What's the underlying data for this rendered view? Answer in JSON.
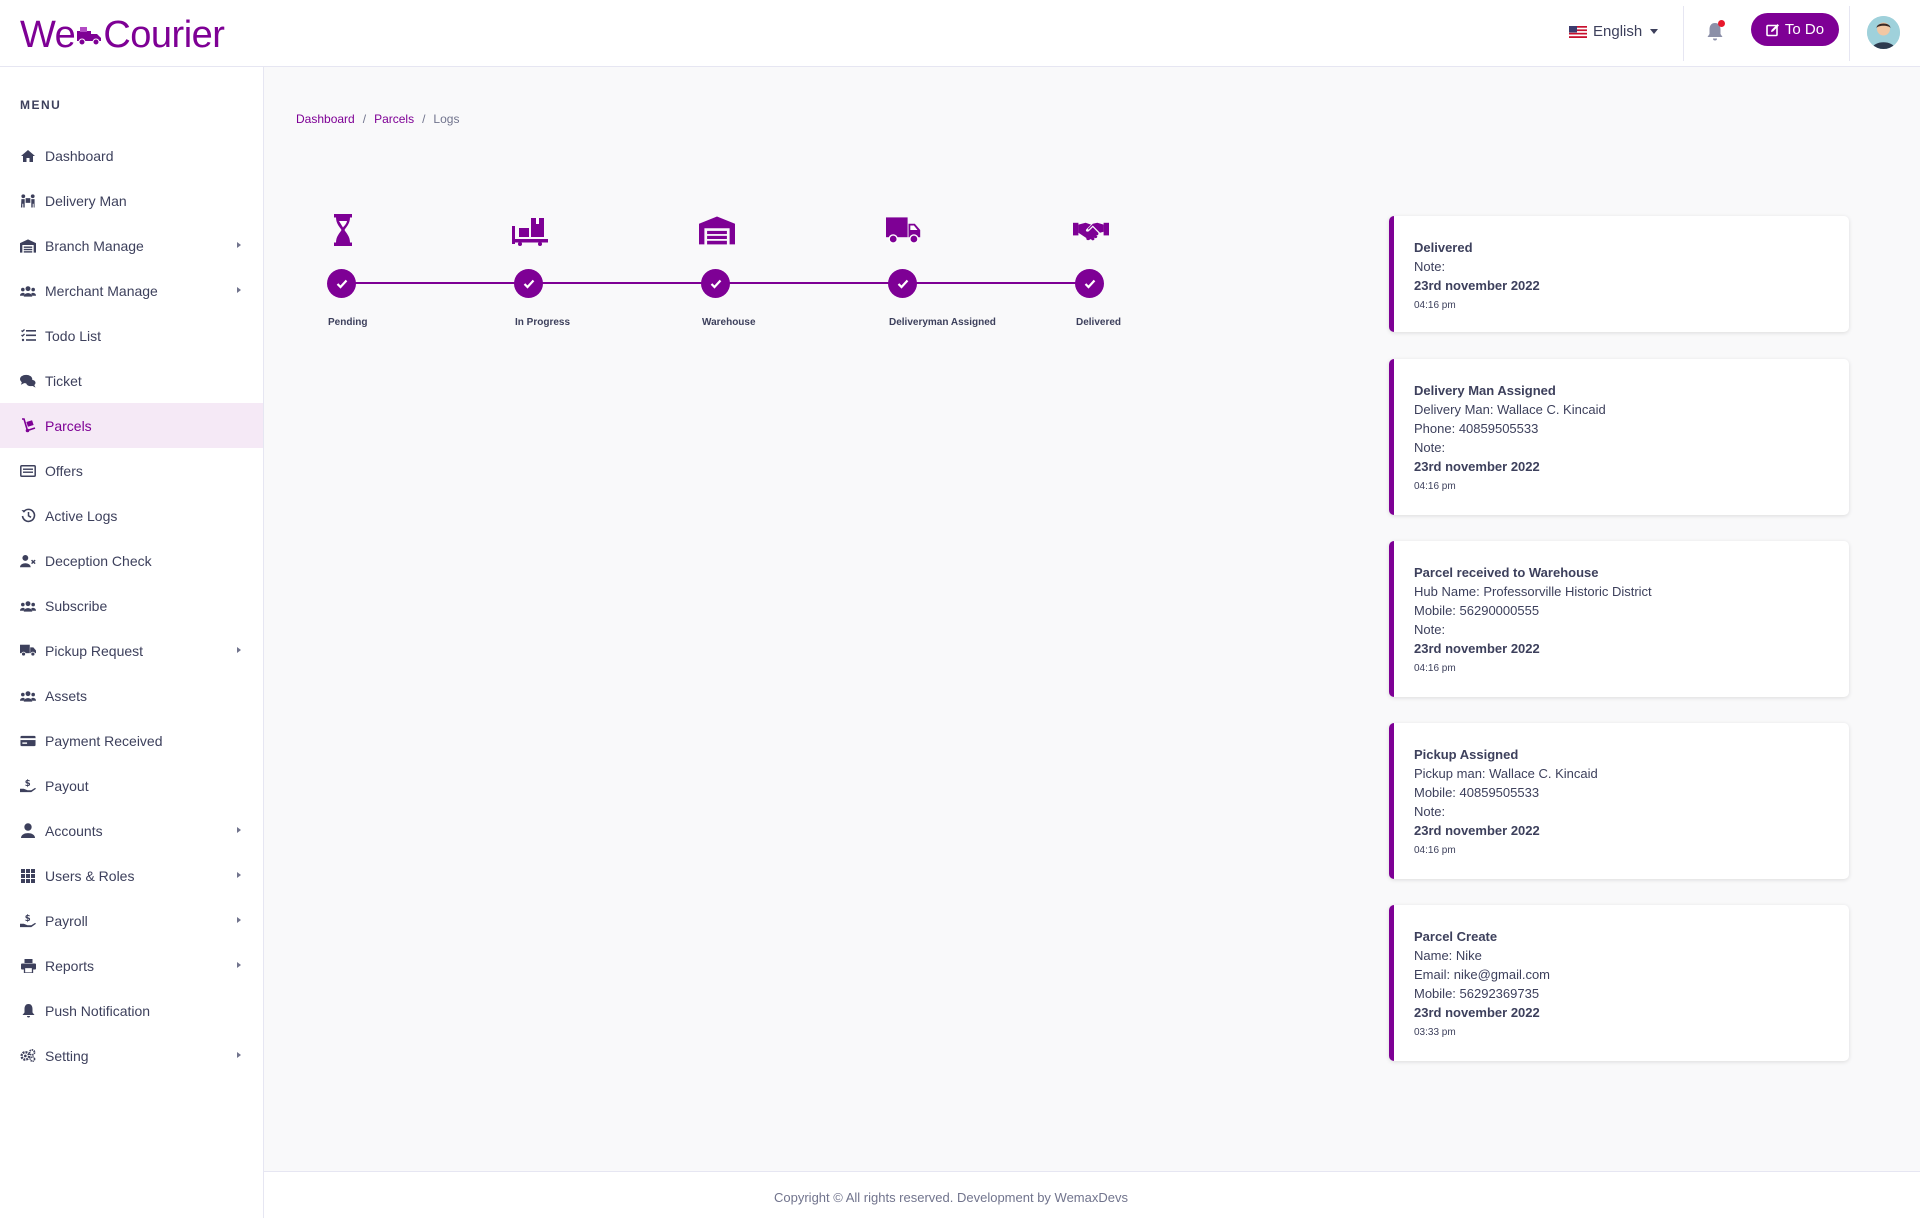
{
  "brand": {
    "name_left": "We",
    "name_right": "Courier",
    "accent": "#7e0095"
  },
  "header": {
    "language": "English",
    "todo_label": "To Do",
    "icons": {
      "flag": "us-flag-icon",
      "bell": "bell-icon",
      "todo": "edit-icon",
      "avatar": "user-avatar"
    }
  },
  "sidebar": {
    "menu_title": "MENU",
    "items": [
      {
        "label": "Dashboard",
        "icon": "home-icon"
      },
      {
        "label": "Delivery Man",
        "icon": "people-carry-icon"
      },
      {
        "label": "Branch Manage",
        "icon": "warehouse-icon"
      },
      {
        "label": "Merchant Manage",
        "icon": "users-icon"
      },
      {
        "label": "Todo List",
        "icon": "list-icon"
      },
      {
        "label": "Ticket",
        "icon": "comments-icon"
      },
      {
        "label": "Parcels",
        "icon": "dolly-icon"
      },
      {
        "label": "Offers",
        "icon": "offer-icon"
      },
      {
        "label": "Active Logs",
        "icon": "history-icon"
      },
      {
        "label": "Deception Check",
        "icon": "user-times-icon"
      },
      {
        "label": "Subscribe",
        "icon": "users-icon"
      },
      {
        "label": "Pickup Request",
        "icon": "truck-icon"
      },
      {
        "label": "Assets",
        "icon": "users-icon"
      },
      {
        "label": "Payment Received",
        "icon": "credit-card-icon"
      },
      {
        "label": "Payout",
        "icon": "hand-money-icon"
      },
      {
        "label": "Accounts",
        "icon": "user-icon"
      },
      {
        "label": "Users & Roles",
        "icon": "grid-icon"
      },
      {
        "label": "Payroll",
        "icon": "hand-money-icon"
      },
      {
        "label": "Reports",
        "icon": "print-icon"
      },
      {
        "label": "Push Notification",
        "icon": "bell-icon"
      },
      {
        "label": "Setting",
        "icon": "gears-icon"
      }
    ]
  },
  "breadcrumb": {
    "items": [
      "Dashboard",
      "Parcels",
      "Logs"
    ],
    "separator": "/"
  },
  "timeline": {
    "steps": [
      {
        "label": "Pending",
        "icon": "hourglass-icon",
        "done": true
      },
      {
        "label": "In Progress",
        "icon": "dolly-flatbed-icon",
        "done": true
      },
      {
        "label": "Warehouse",
        "icon": "warehouse-icon",
        "done": true
      },
      {
        "label": "Deliveryman Assigned",
        "icon": "truck-icon",
        "done": true
      },
      {
        "label": "Delivered",
        "icon": "handshake-icon",
        "done": true
      }
    ]
  },
  "logs": [
    {
      "title": "Delivered",
      "lines": [
        "Note:"
      ],
      "date": "23rd november 2022",
      "time": "04:16 pm"
    },
    {
      "title": "Delivery Man Assigned",
      "lines": [
        "Delivery Man: Wallace C. Kincaid",
        "Phone: 40859505533",
        "Note:"
      ],
      "date": "23rd november 2022",
      "time": "04:16 pm"
    },
    {
      "title": "Parcel received to Warehouse",
      "lines": [
        "Hub Name: Professorville Historic District",
        "Mobile: 56290000555",
        "Note:"
      ],
      "date": "23rd november 2022",
      "time": "04:16 pm"
    },
    {
      "title": "Pickup Assigned",
      "lines": [
        "Pickup man: Wallace C. Kincaid",
        "Mobile: 40859505533",
        "Note:"
      ],
      "date": "23rd november 2022",
      "time": "04:16 pm"
    },
    {
      "title": "Parcel Create",
      "lines": [
        "Name: Nike",
        "Email: nike@gmail.com",
        "Mobile: 56292369735"
      ],
      "date": "23rd november 2022",
      "time": "03:33 pm"
    }
  ],
  "footer": {
    "text": "Copyright © All rights reserved. Development by WemaxDevs"
  }
}
